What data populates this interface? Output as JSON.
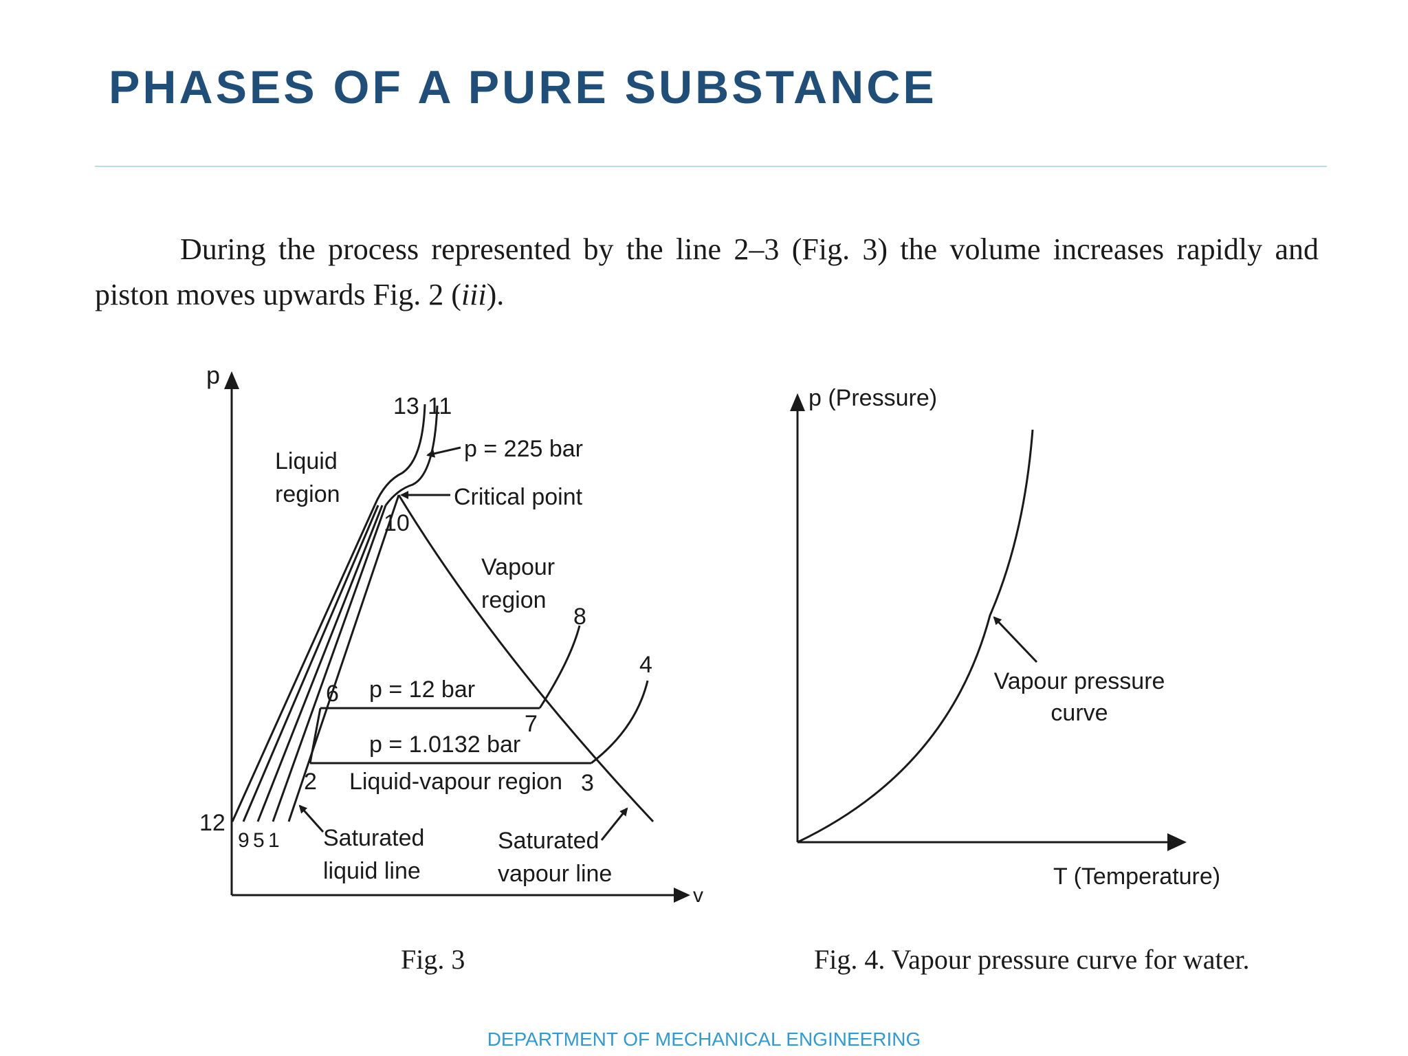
{
  "slide": {
    "title": "PHASES OF A PURE SUBSTANCE",
    "footer": "DEPARTMENT OF MECHANICAL ENGINEERING"
  },
  "text": {
    "paragraph_line1": "During the process represented by the line 2–3 (Fig. 3) the volume increases rapidly and",
    "paragraph_line2_prefix": "piston moves upwards Fig. 2 (",
    "paragraph_line2_italic": "iii",
    "paragraph_line2_suffix": ")."
  },
  "fig3": {
    "caption": "Fig. 3",
    "axis_p": "p",
    "axis_v": "v",
    "labels": {
      "liquid_line1": "Liquid",
      "liquid_line2": "region",
      "vapour_line1": "Vapour",
      "vapour_line2": "region",
      "p225": "p = 225 bar",
      "critical": "Critical point",
      "p12": "p = 12 bar",
      "p10132": "p = 1.0132 bar",
      "lv_region": "Liquid-vapour region",
      "sat_liquid1": "Saturated",
      "sat_liquid2": "liquid line",
      "sat_vapour1": "Saturated",
      "sat_vapour2": "vapour line"
    },
    "points": {
      "n13": "13",
      "n11": "11",
      "n10": "10",
      "n8": "8",
      "n7": "7",
      "n6": "6",
      "n4": "4",
      "n3": "3",
      "n2": "2",
      "n12": "12",
      "n9": "9",
      "n5": "5",
      "n1": "1"
    }
  },
  "fig4": {
    "caption": "Fig. 4. Vapour pressure curve for water.",
    "axis_p": "p (Pressure)",
    "axis_t": "T (Temperature)",
    "curve_label1": "Vapour pressure",
    "curve_label2": "curve"
  }
}
